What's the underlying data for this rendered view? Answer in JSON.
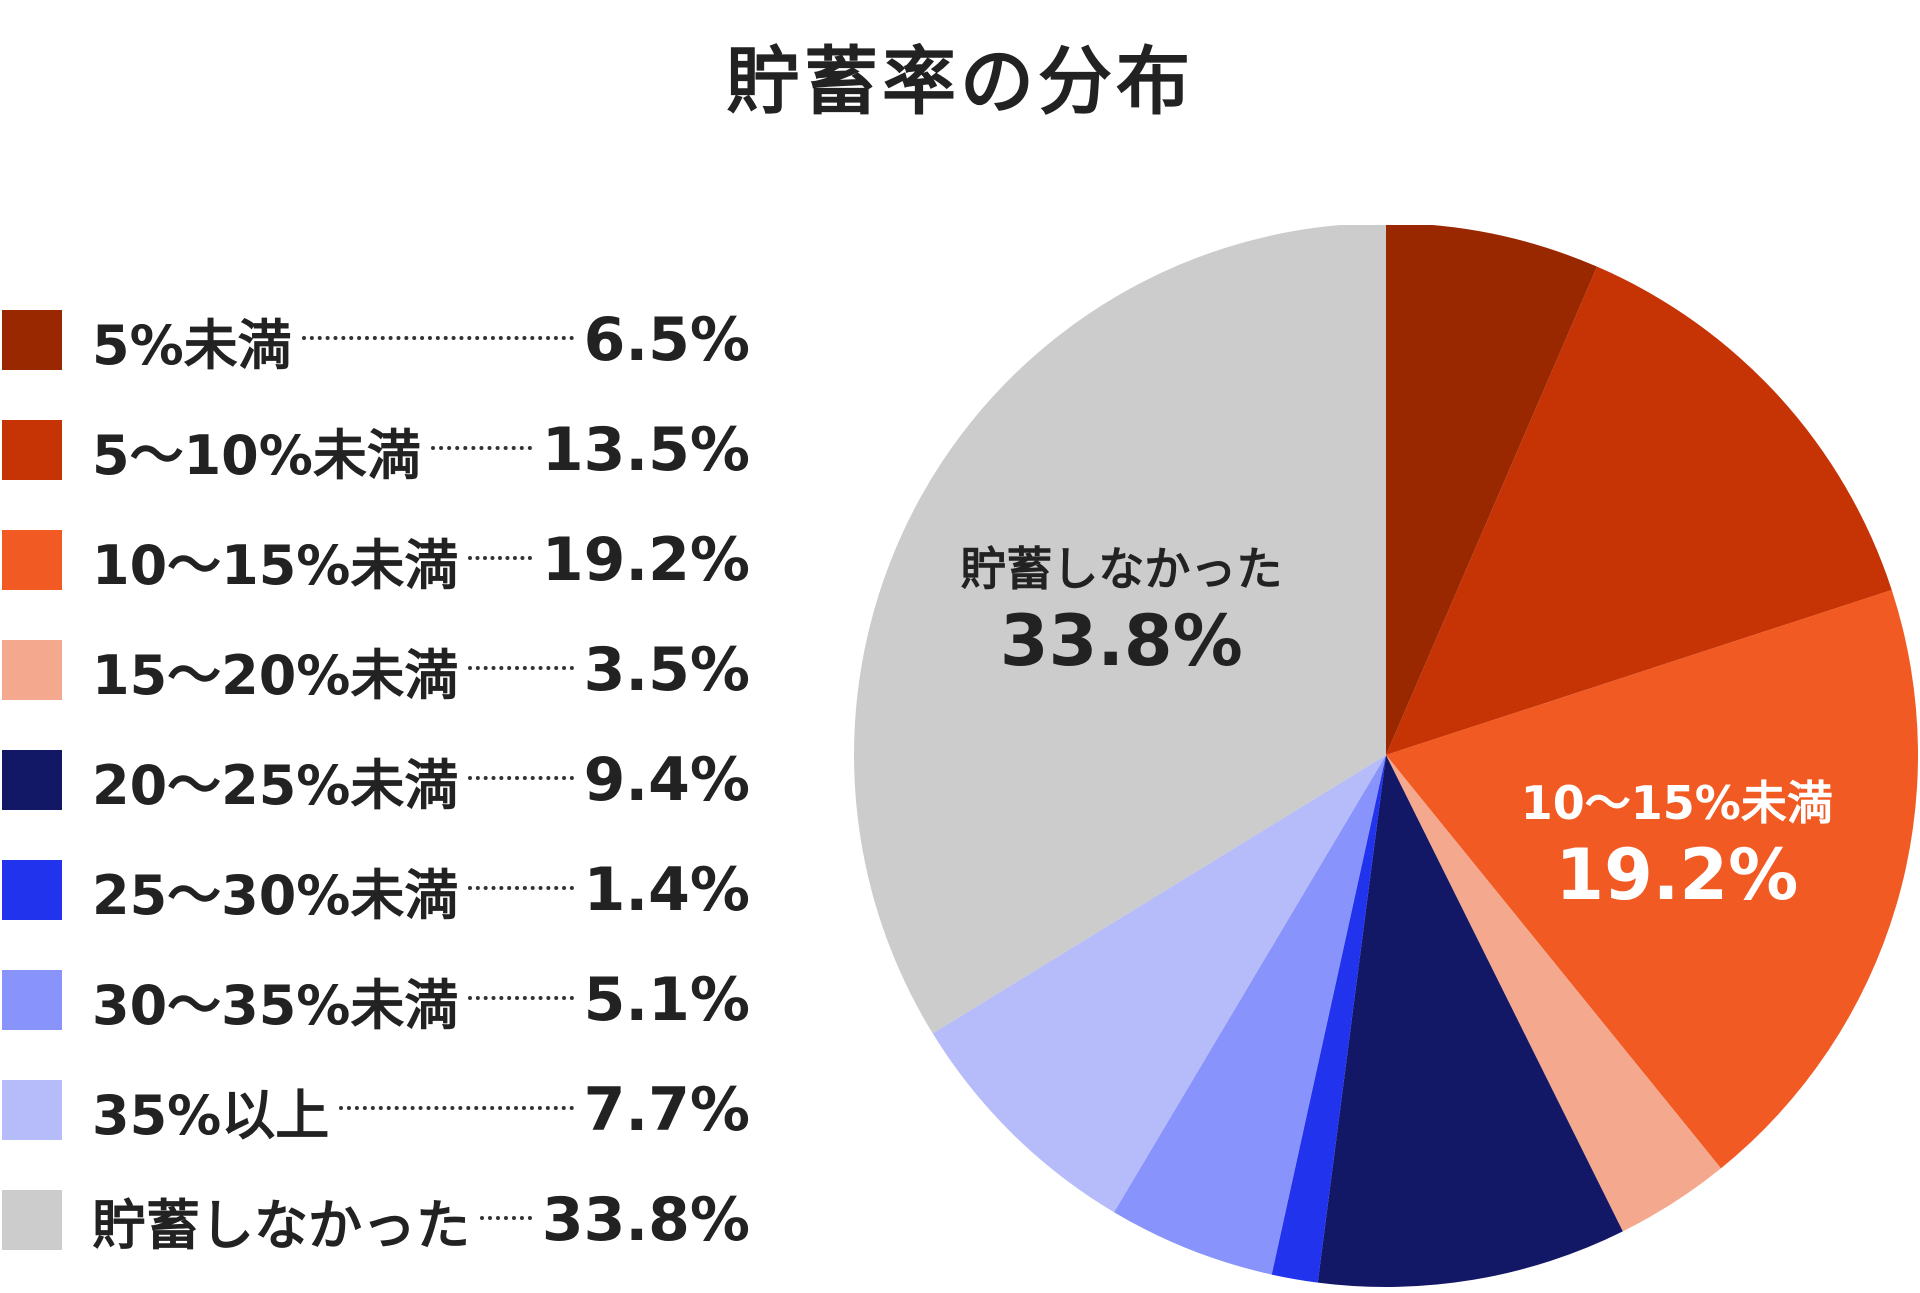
{
  "chart_data": {
    "type": "pie",
    "title": "貯蓄率の分布",
    "slices": [
      {
        "label": "5%未満",
        "value": 6.5,
        "value_text": "6.5%",
        "color": "#992800"
      },
      {
        "label": "5〜10%未満",
        "value": 13.5,
        "value_text": "13.5%",
        "color": "#C63304"
      },
      {
        "label": "10〜15%未満",
        "value": 19.2,
        "value_text": "19.2%",
        "color": "#F25A24"
      },
      {
        "label": "15〜20%未満",
        "value": 3.5,
        "value_text": "3.5%",
        "color": "#F4A98E"
      },
      {
        "label": "20〜25%未満",
        "value": 9.4,
        "value_text": "9.4%",
        "color": "#131866"
      },
      {
        "label": "25〜30%未満",
        "value": 1.4,
        "value_text": "1.4%",
        "color": "#2233EE"
      },
      {
        "label": "30〜35%未満",
        "value": 5.1,
        "value_text": "5.1%",
        "color": "#8893FB"
      },
      {
        "label": "35%以上",
        "value": 7.7,
        "value_text": "7.7%",
        "color": "#B6BCFA"
      },
      {
        "label": "貯蓄しなかった",
        "value": 33.8,
        "value_text": "33.8%",
        "color": "#CCCCCC"
      }
    ],
    "start_angle": "12 o'clock",
    "direction": "clockwise",
    "legend_position": "left",
    "annotations": [
      {
        "slice": "10〜15%未満",
        "label": "10〜15%未満",
        "value_text": "19.2%",
        "text_color": "#FFFFFF"
      },
      {
        "slice": "貯蓄しなかった",
        "label": "貯蓄しなかった",
        "value_text": "33.8%",
        "text_color": "#222222"
      }
    ]
  }
}
